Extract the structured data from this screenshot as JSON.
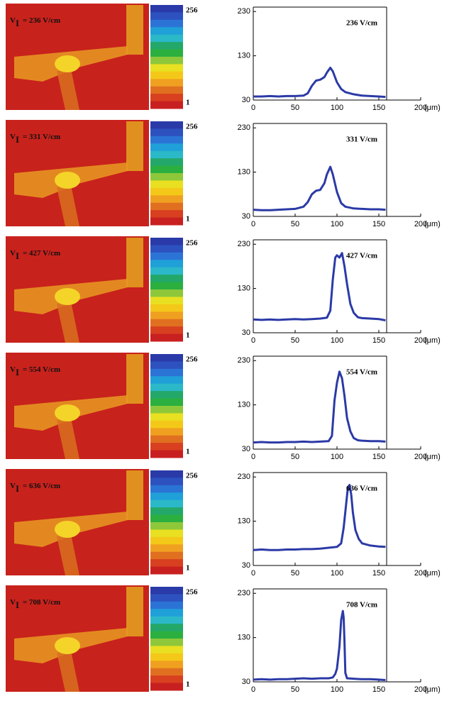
{
  "chart_data": [
    {
      "type": "line",
      "image_label": {
        "symbol": "V",
        "subscript": "I",
        "text": "= 236 V/cm"
      },
      "colorbar_ticks": [
        256,
        1
      ],
      "annotation": "236 V/cm",
      "x_label": "(μm)",
      "color": "#2b3aa6",
      "x": [
        0,
        10,
        20,
        30,
        40,
        50,
        60,
        65,
        70,
        75,
        80,
        85,
        88,
        92,
        95,
        100,
        105,
        110,
        120,
        130,
        140,
        150,
        158
      ],
      "values": [
        38,
        38,
        39,
        38,
        39,
        39,
        40,
        45,
        62,
        74,
        76,
        82,
        92,
        103,
        95,
        70,
        55,
        48,
        43,
        40,
        39,
        38,
        37
      ],
      "xlim": [
        0,
        200
      ],
      "ylim": [
        30,
        240
      ],
      "xticks": [
        0,
        50,
        100,
        150,
        200
      ],
      "yticks": [
        30,
        130,
        230
      ]
    },
    {
      "type": "line",
      "image_label": {
        "symbol": "V",
        "subscript": "I",
        "text": "= 331 V/cm"
      },
      "colorbar_ticks": [
        256,
        1
      ],
      "annotation": "331 V/cm",
      "x_label": "(μm)",
      "color": "#2b3aa6",
      "x": [
        0,
        10,
        20,
        30,
        40,
        50,
        60,
        65,
        70,
        75,
        80,
        85,
        88,
        92,
        95,
        100,
        105,
        110,
        120,
        130,
        140,
        150,
        158
      ],
      "values": [
        45,
        44,
        44,
        45,
        46,
        47,
        52,
        62,
        80,
        88,
        90,
        105,
        125,
        142,
        125,
        85,
        60,
        52,
        48,
        47,
        46,
        46,
        45
      ],
      "xlim": [
        0,
        200
      ],
      "ylim": [
        30,
        240
      ],
      "xticks": [
        0,
        50,
        100,
        150,
        200
      ],
      "yticks": [
        30,
        130,
        230
      ]
    },
    {
      "type": "line",
      "image_label": {
        "symbol": "V",
        "subscript": "I",
        "text": "= 427 V/cm"
      },
      "colorbar_ticks": [
        256,
        1
      ],
      "annotation": "427 V/cm",
      "x_label": "(μm)",
      "color": "#2b3aa6",
      "x": [
        0,
        10,
        20,
        30,
        40,
        50,
        60,
        70,
        80,
        88,
        92,
        95,
        98,
        100,
        103,
        106,
        109,
        112,
        116,
        120,
        125,
        130,
        140,
        150,
        158
      ],
      "values": [
        60,
        59,
        60,
        59,
        60,
        61,
        60,
        61,
        62,
        64,
        80,
        150,
        200,
        205,
        200,
        210,
        180,
        140,
        95,
        75,
        65,
        63,
        62,
        61,
        58
      ],
      "xlim": [
        0,
        200
      ],
      "ylim": [
        30,
        240
      ],
      "xticks": [
        0,
        50,
        100,
        150,
        200
      ],
      "yticks": [
        30,
        130,
        230
      ]
    },
    {
      "type": "line",
      "image_label": {
        "symbol": "V",
        "subscript": "I",
        "text": "= 554 V/cm"
      },
      "colorbar_ticks": [
        256,
        1
      ],
      "annotation": "554 V/cm",
      "x_label": "(μm)",
      "color": "#2b3aa6",
      "x": [
        0,
        10,
        20,
        30,
        40,
        50,
        60,
        70,
        80,
        90,
        94,
        97,
        100,
        103,
        106,
        109,
        112,
        116,
        120,
        125,
        130,
        140,
        150,
        158
      ],
      "values": [
        45,
        46,
        45,
        45,
        46,
        46,
        47,
        46,
        47,
        48,
        60,
        140,
        180,
        205,
        190,
        150,
        100,
        70,
        55,
        50,
        49,
        48,
        48,
        47
      ],
      "xlim": [
        0,
        200
      ],
      "ylim": [
        30,
        240
      ],
      "xticks": [
        0,
        50,
        100,
        150,
        200
      ],
      "yticks": [
        30,
        130,
        230
      ]
    },
    {
      "type": "line",
      "image_label": {
        "symbol": "V",
        "subscript": "I",
        "text": "= 636 V/cm"
      },
      "colorbar_ticks": [
        256,
        1
      ],
      "annotation": "636 V/cm",
      "x_label": "(μm)",
      "color": "#2b3aa6",
      "x": [
        0,
        10,
        20,
        30,
        40,
        50,
        60,
        70,
        80,
        90,
        100,
        105,
        108,
        111,
        113,
        115,
        117,
        119,
        122,
        126,
        130,
        140,
        150,
        158
      ],
      "values": [
        65,
        66,
        65,
        65,
        66,
        66,
        67,
        67,
        68,
        70,
        72,
        80,
        115,
        170,
        205,
        212,
        190,
        150,
        110,
        90,
        80,
        75,
        73,
        72
      ],
      "xlim": [
        0,
        200
      ],
      "ylim": [
        30,
        240
      ],
      "xticks": [
        0,
        50,
        100,
        150,
        200
      ],
      "yticks": [
        30,
        130,
        230
      ]
    },
    {
      "type": "line",
      "image_label": {
        "symbol": "V",
        "subscript": "I",
        "text": "= 708 V/cm"
      },
      "colorbar_ticks": [
        256,
        1
      ],
      "annotation": "708 V/cm",
      "x_label": "(μm)",
      "color": "#2b3aa6",
      "x": [
        0,
        10,
        20,
        30,
        40,
        50,
        60,
        70,
        80,
        90,
        95,
        98,
        100,
        103,
        105,
        107,
        108,
        109,
        110,
        112,
        120,
        130,
        140,
        150,
        158
      ],
      "values": [
        35,
        36,
        35,
        36,
        36,
        37,
        38,
        37,
        38,
        38,
        40,
        48,
        60,
        110,
        170,
        190,
        175,
        120,
        50,
        38,
        37,
        36,
        36,
        35,
        34
      ],
      "xlim": [
        0,
        200
      ],
      "ylim": [
        30,
        240
      ],
      "xticks": [
        0,
        50,
        100,
        150,
        200
      ],
      "yticks": [
        30,
        130,
        230
      ]
    }
  ]
}
